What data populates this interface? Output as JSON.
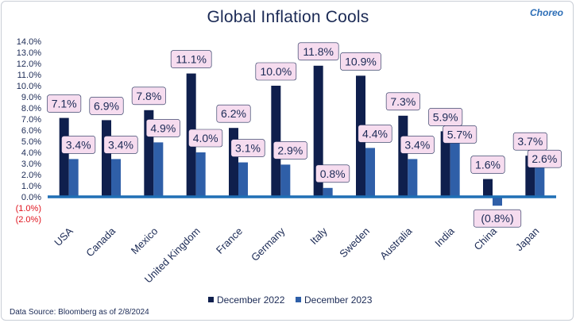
{
  "title": "Global Inflation Cools",
  "logo_text": "Choreo",
  "source": "Data Source: Bloomberg as of 2/8/2024",
  "chart_data": {
    "type": "bar",
    "title": "Global Inflation Cools",
    "xlabel": "",
    "ylabel": "",
    "ylim": [
      -2.0,
      14.0
    ],
    "grid": false,
    "legend_position": "bottom",
    "y_ticks": [
      "14.0%",
      "13.0%",
      "12.0%",
      "11.0%",
      "10.0%",
      "9.0%",
      "8.0%",
      "7.0%",
      "6.0%",
      "5.0%",
      "4.0%",
      "3.0%",
      "2.0%",
      "1.0%",
      "0.0%",
      "(1.0%)",
      "(2.0%)"
    ],
    "y_tick_values": [
      14,
      13,
      12,
      11,
      10,
      9,
      8,
      7,
      6,
      5,
      4,
      3,
      2,
      1,
      0,
      -1,
      -2
    ],
    "categories": [
      "USA",
      "Canada",
      "Mexico",
      "United Kingdom",
      "France",
      "Germany",
      "Italy",
      "Sweden",
      "Australia",
      "India",
      "China",
      "Japan"
    ],
    "series": [
      {
        "name": "December 2022",
        "color": "#0f1f4d",
        "values": [
          7.1,
          6.9,
          7.8,
          11.1,
          6.2,
          10.0,
          11.8,
          10.9,
          7.3,
          5.9,
          1.6,
          3.7
        ],
        "labels": [
          "7.1%",
          "6.9%",
          "7.8%",
          "11.1%",
          "6.2%",
          "10.0%",
          "11.8%",
          "10.9%",
          "7.3%",
          "5.9%",
          "1.6%",
          "3.7%"
        ]
      },
      {
        "name": "December 2023",
        "color": "#2f5fa8",
        "values": [
          3.4,
          3.4,
          4.9,
          4.0,
          3.1,
          2.9,
          0.8,
          4.4,
          3.4,
          5.7,
          -0.8,
          2.6
        ],
        "labels": [
          "3.4%",
          "3.4%",
          "4.9%",
          "4.0%",
          "3.1%",
          "2.9%",
          "0.8%",
          "4.4%",
          "3.4%",
          "5.7%",
          "(0.8%)",
          "2.6%"
        ]
      }
    ],
    "colors": {
      "axis_text": "#1b2a55",
      "negative_text": "#e0141e",
      "zero_line": "#1f6fb5",
      "label_fill": "#f6dcef",
      "label_border": "#1b2a55"
    }
  }
}
